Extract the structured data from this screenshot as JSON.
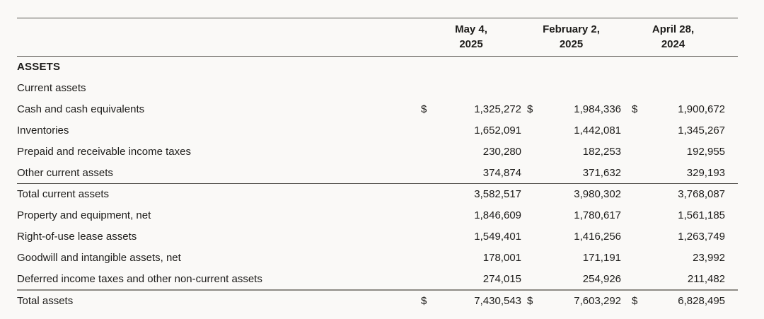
{
  "section_title": "ASSETS",
  "header": {
    "periods": [
      {
        "month_day": "May 4,",
        "year": "2025"
      },
      {
        "month_day": "February 2,",
        "year": "2025"
      },
      {
        "month_day": "April 28,",
        "year": "2024"
      }
    ]
  },
  "rows": [
    {
      "label": "Current assets"
    },
    {
      "label": "Cash and cash equivalents",
      "currency": "$",
      "values": [
        "1,325,272",
        "1,984,336",
        "1,900,672"
      ]
    },
    {
      "label": "Inventories",
      "values": [
        "1,652,091",
        "1,442,081",
        "1,345,267"
      ]
    },
    {
      "label": "Prepaid and receivable income taxes",
      "values": [
        "230,280",
        "182,253",
        "192,955"
      ]
    },
    {
      "label": "Other current assets",
      "values": [
        "374,874",
        "371,632",
        "329,193"
      ]
    },
    {
      "label": "Total current assets",
      "values": [
        "3,582,517",
        "3,980,302",
        "3,768,087"
      ]
    },
    {
      "label": "Property and equipment, net",
      "values": [
        "1,846,609",
        "1,780,617",
        "1,561,185"
      ]
    },
    {
      "label": "Right-of-use lease assets",
      "values": [
        "1,549,401",
        "1,416,256",
        "1,263,749"
      ]
    },
    {
      "label": "Goodwill and intangible assets, net",
      "values": [
        "178,001",
        "171,191",
        "23,992"
      ]
    },
    {
      "label": "Deferred income taxes and other non-current assets",
      "values": [
        "274,015",
        "254,926",
        "211,482"
      ]
    },
    {
      "label": "Total assets",
      "currency": "$",
      "values": [
        "7,430,543",
        "7,603,292",
        "6,828,495"
      ]
    }
  ],
  "colors": {
    "background": "#faf9f7",
    "text": "#1d1c1a",
    "rule_thin": "#55534e",
    "rule_total": "#8d8b85"
  }
}
